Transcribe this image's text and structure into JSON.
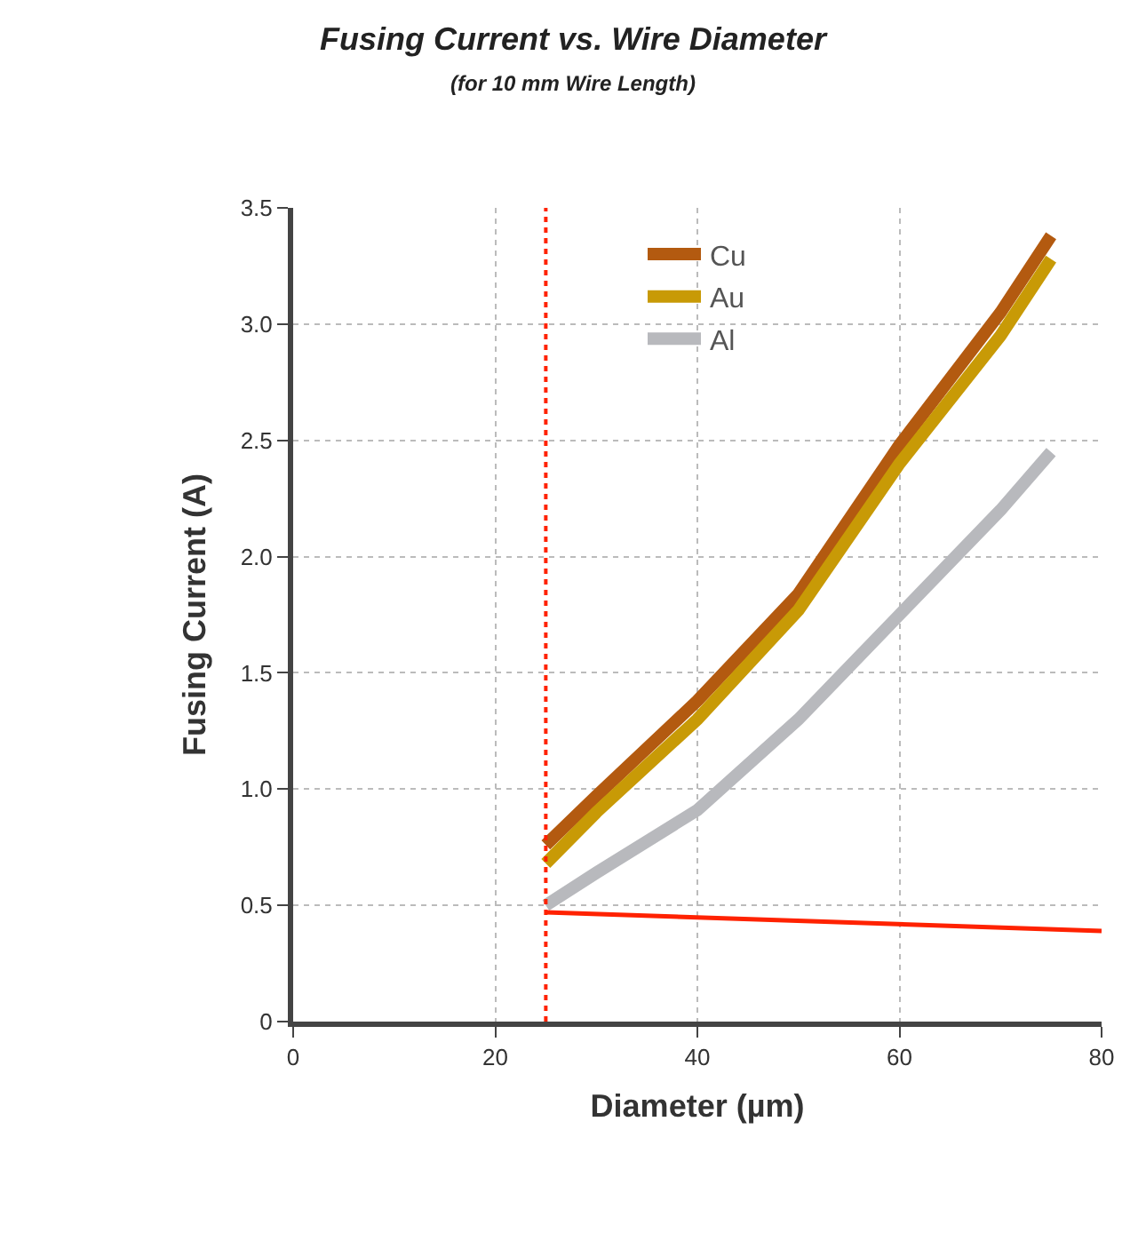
{
  "chart_data": {
    "type": "line",
    "title": "Fusing Current vs. Wire Diameter",
    "subtitle": "(for 10 mm Wire Length)",
    "xlabel": "Diameter (µm)",
    "ylabel": "Fusing Current (A)",
    "x": [
      25,
      30,
      40,
      50,
      60,
      70,
      75
    ],
    "series": [
      {
        "name": "Cu",
        "color": "#b35a10",
        "values": [
          0.76,
          0.97,
          1.38,
          1.84,
          2.48,
          3.05,
          3.38
        ]
      },
      {
        "name": "Au",
        "color": "#c89a06",
        "values": [
          0.68,
          0.9,
          1.3,
          1.77,
          2.4,
          2.95,
          3.28
        ]
      },
      {
        "name": "Al",
        "color": "#b8b9bd",
        "values": [
          0.5,
          0.64,
          0.91,
          1.3,
          1.75,
          2.2,
          2.45
        ]
      },
      {
        "type": "line",
        "color": "#ff2200",
        "x": [
          25,
          80
        ],
        "values": [
          0.47,
          0.39
        ]
      }
    ],
    "xlim": [
      0,
      80
    ],
    "xticks": [
      0,
      20,
      40,
      60,
      80
    ],
    "ylim": [
      0,
      3.5
    ],
    "yticks": [
      {
        "value": 0,
        "label": "0"
      },
      {
        "value": 0.5,
        "label": "0.5"
      },
      {
        "value": 1,
        "label": "1.0"
      },
      {
        "value": 1.5,
        "label": "1.5"
      },
      {
        "value": 2,
        "label": "2.0"
      },
      {
        "value": 2.5,
        "label": "2.5"
      },
      {
        "value": 3,
        "label": "3.0"
      },
      {
        "value": 3.5,
        "label": "3.5"
      }
    ],
    "ref_lines": [
      {
        "axis": "x",
        "value": 25,
        "color": "#ff2200",
        "line_style": "dotted"
      }
    ],
    "grid": true,
    "legend": "top",
    "marker": "none",
    "line_style": "solid"
  }
}
